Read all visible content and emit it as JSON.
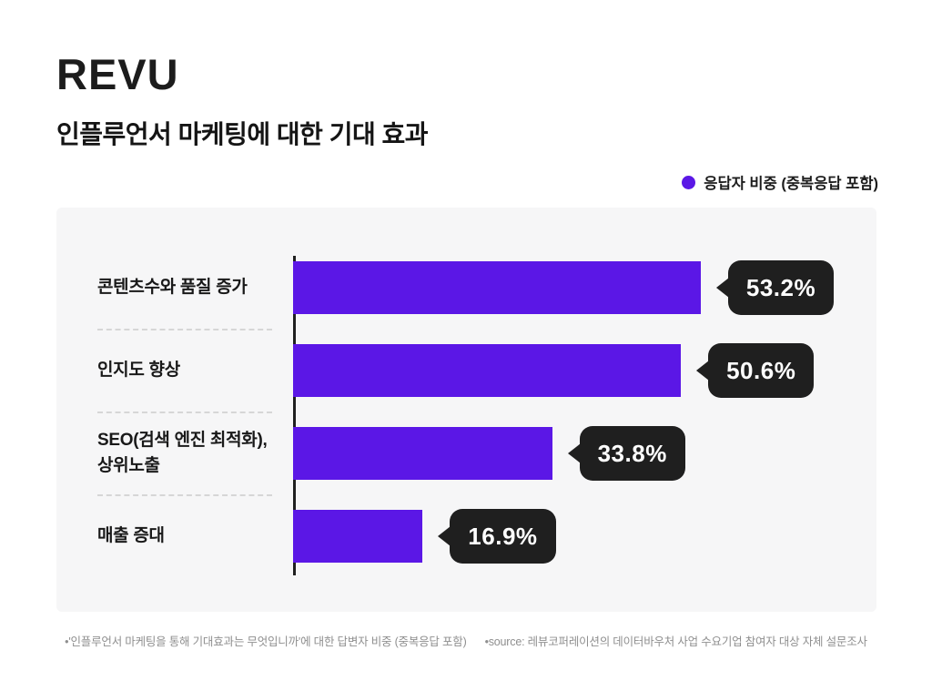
{
  "page": {
    "brand": "REVU",
    "title": "인플루언서 마케팅에 대한 기대 효과",
    "legend": {
      "label": "응답자 비중 (중복응답 포함)",
      "color": "#5b17e6"
    },
    "footnotes": {
      "left": "•'인플루언서 마케팅을 통해 기대효과는 무엇입니까'에 대한 답변자 비중 (중복응답 포함)",
      "right": "•source: 레뷰코퍼레이션의 데이터바우처 사업 수요기업 참여자 대상 자체 설문조사"
    }
  },
  "chart_data": {
    "type": "bar",
    "orientation": "horizontal",
    "title": "인플루언서 마케팅에 대한 기대 효과",
    "series_name": "응답자 비중 (중복응답 포함)",
    "categories": [
      "콘텐츠수와 품질 증가",
      "인지도 향상",
      "SEO(검색 엔진 최적화),\n상위노출",
      "매출 증대"
    ],
    "values": [
      53.2,
      50.6,
      33.8,
      16.9
    ],
    "value_labels": [
      "53.2%",
      "50.6%",
      "33.8%",
      "16.9%"
    ],
    "unit": "%",
    "xlim": [
      0,
      60
    ],
    "grid": false,
    "legend_position": "top-right",
    "bar_color": "#5b17e6",
    "callout_bg": "#1f1f1f",
    "callout_text_color": "#ffffff"
  }
}
